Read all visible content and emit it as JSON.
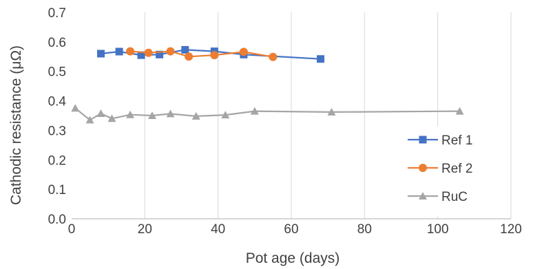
{
  "chart_data": {
    "type": "line",
    "title": "",
    "xlabel": "Pot age (days)",
    "ylabel": "Cathodic resistance (μΩ)",
    "xlim": [
      0,
      120
    ],
    "ylim": [
      0.0,
      0.7
    ],
    "xticks": [
      "0",
      "20",
      "40",
      "60",
      "80",
      "100",
      "120"
    ],
    "yticks": [
      "0.0",
      "0.1",
      "0.2",
      "0.3",
      "0.4",
      "0.5",
      "0.6",
      "0.7"
    ],
    "grid": "vertical",
    "legend_position": "right",
    "series": [
      {
        "name": "Ref 1",
        "color": "#4472c4",
        "marker": "square",
        "points": [
          [
            8,
            0.56
          ],
          [
            13,
            0.567
          ],
          [
            19,
            0.555
          ],
          [
            24,
            0.557
          ],
          [
            31,
            0.573
          ],
          [
            39,
            0.568
          ],
          [
            47,
            0.557
          ],
          [
            68,
            0.542
          ]
        ]
      },
      {
        "name": "Ref 2",
        "color": "#ed7d31",
        "marker": "circle",
        "points": [
          [
            16,
            0.568
          ],
          [
            21,
            0.563
          ],
          [
            27,
            0.568
          ],
          [
            32,
            0.55
          ],
          [
            39,
            0.555
          ],
          [
            47,
            0.566
          ],
          [
            55,
            0.549
          ]
        ]
      },
      {
        "name": "RuC",
        "color": "#a5a5a5",
        "marker": "triangle",
        "points": [
          [
            1,
            0.375
          ],
          [
            5,
            0.335
          ],
          [
            8,
            0.357
          ],
          [
            11,
            0.34
          ],
          [
            16,
            0.353
          ],
          [
            22,
            0.35
          ],
          [
            27,
            0.356
          ],
          [
            34,
            0.348
          ],
          [
            42,
            0.352
          ],
          [
            50,
            0.365
          ],
          [
            71,
            0.362
          ],
          [
            106,
            0.365
          ]
        ]
      }
    ]
  }
}
